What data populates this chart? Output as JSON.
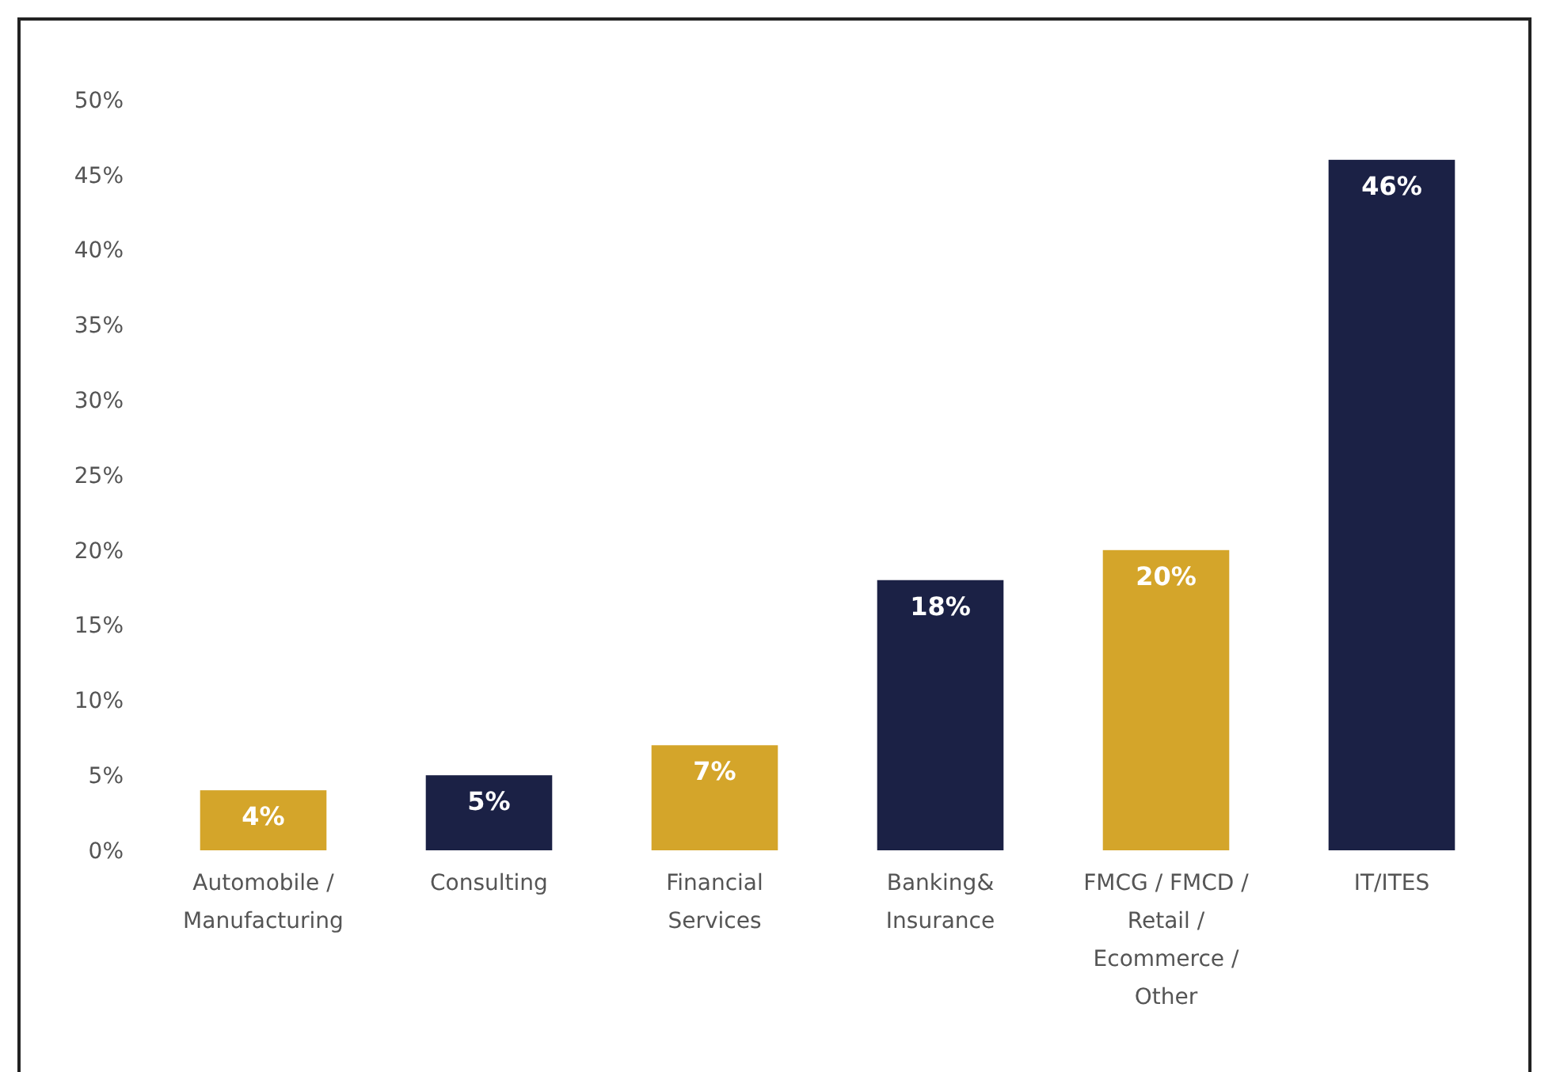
{
  "chart_data": {
    "type": "bar",
    "categories": [
      "Automobile / Manufacturing",
      "Consulting",
      "Financial Services",
      "Banking& Insurance",
      "FMCG / FMCD / Retail / Ecommerce / Other",
      "IT/ITES"
    ],
    "values": [
      4,
      5,
      7,
      18,
      20,
      46
    ],
    "colors": [
      "#d4a52a",
      "#1b2145",
      "#d4a52a",
      "#1b2145",
      "#d4a52a",
      "#1b2145"
    ],
    "value_labels": [
      "4%",
      "5%",
      "7%",
      "18%",
      "20%",
      "46%"
    ],
    "ylim": [
      0,
      50
    ],
    "yticks": [
      {
        "value": 0,
        "label": "0%"
      },
      {
        "value": 5,
        "label": "5%"
      },
      {
        "value": 10,
        "label": "10%"
      },
      {
        "value": 15,
        "label": "15%"
      },
      {
        "value": 20,
        "label": "20%"
      },
      {
        "value": 25,
        "label": "25%"
      },
      {
        "value": 30,
        "label": "30%"
      },
      {
        "value": 35,
        "label": "35%"
      },
      {
        "value": 40,
        "label": "40%"
      },
      {
        "value": 45,
        "label": "45%"
      },
      {
        "value": 50,
        "label": "50%"
      }
    ],
    "grid": false
  }
}
